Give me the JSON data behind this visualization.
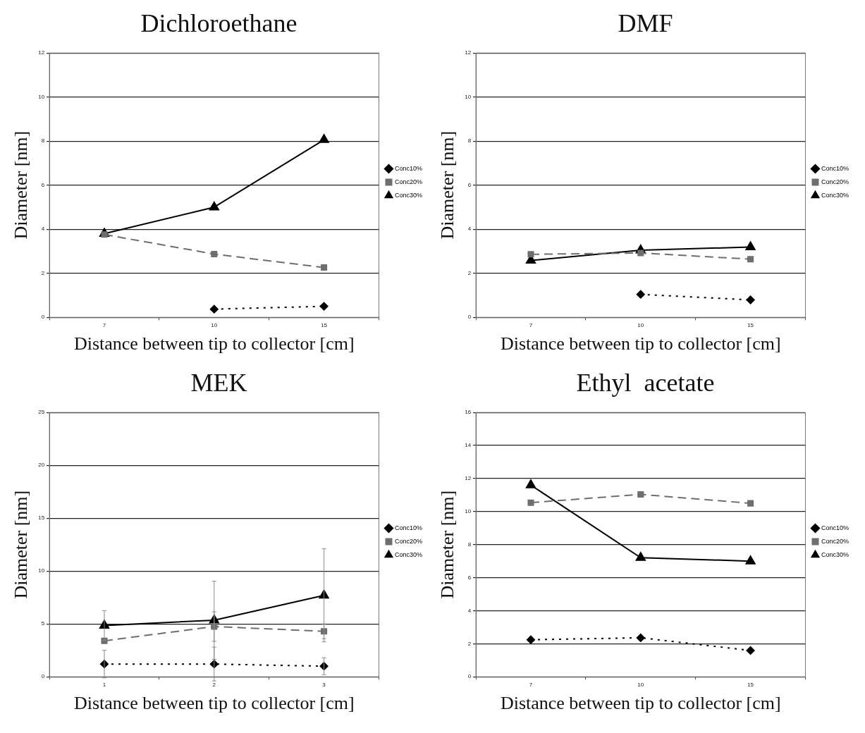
{
  "chart_data": [
    {
      "type": "line",
      "title": "Dichloroethane",
      "xlabel": "Distance between tip to collector [cm]",
      "ylabel": "Diameter [nm]",
      "categories": [
        "7",
        "10",
        "15"
      ],
      "ylim": [
        0,
        12
      ],
      "yticks": [
        0,
        2,
        4,
        6,
        8,
        10,
        12
      ],
      "grid": "y",
      "legend": "right",
      "series": [
        {
          "name": "Conc10%",
          "color": "#000000",
          "marker": "diamond",
          "line_style": "dotted",
          "values": [
            null,
            0.37,
            0.5
          ]
        },
        {
          "name": "Conc20%",
          "color": "#6e6e6e",
          "marker": "square",
          "line_style": "dashed",
          "values": [
            3.76,
            2.87,
            2.26
          ]
        },
        {
          "name": "Conc30%",
          "color": "#000000",
          "marker": "triangle",
          "line_style": "solid",
          "values": [
            3.8,
            5.0,
            8.06
          ]
        }
      ]
    },
    {
      "type": "line",
      "title": "DMF",
      "xlabel": "Distance between tip to collector [cm]",
      "ylabel": "Diameter [nm]",
      "categories": [
        "7",
        "10",
        "15"
      ],
      "ylim": [
        0,
        12
      ],
      "yticks": [
        0,
        2,
        4,
        6,
        8,
        10,
        12
      ],
      "grid": "y",
      "legend": "right",
      "series": [
        {
          "name": "Conc10%",
          "color": "#000000",
          "marker": "diamond",
          "line_style": "dotted",
          "values": [
            null,
            1.04,
            0.79
          ]
        },
        {
          "name": "Conc20%",
          "color": "#6e6e6e",
          "marker": "square",
          "line_style": "dashed",
          "values": [
            2.86,
            2.92,
            2.64
          ]
        },
        {
          "name": "Conc30%",
          "color": "#000000",
          "marker": "triangle",
          "line_style": "solid",
          "values": [
            2.58,
            3.05,
            3.19
          ]
        }
      ]
    },
    {
      "type": "line",
      "title": "MEK",
      "xlabel": "Distance between tip to collector [cm]",
      "ylabel": "Diameter [nm]",
      "categories": [
        "1",
        "2",
        "3"
      ],
      "ylim": [
        0,
        25
      ],
      "yticks": [
        0,
        5,
        10,
        15,
        20,
        25
      ],
      "grid": "y",
      "legend": "right",
      "series": [
        {
          "name": "Conc10%",
          "color": "#000000",
          "marker": "diamond",
          "line_style": "dotted",
          "values": [
            1.2,
            1.2,
            1.0
          ],
          "errors": [
            1.3,
            1.6,
            0.8
          ]
        },
        {
          "name": "Conc20%",
          "color": "#6e6e6e",
          "marker": "square",
          "line_style": "dashed",
          "values": [
            3.4,
            4.75,
            4.3
          ],
          "errors": [
            null,
            1.4,
            0.7
          ]
        },
        {
          "name": "Conc30%",
          "color": "#000000",
          "marker": "triangle",
          "line_style": "solid",
          "values": [
            4.85,
            5.35,
            7.7
          ],
          "errors": [
            1.4,
            3.7,
            4.4
          ]
        }
      ]
    },
    {
      "type": "line",
      "title": "Ethyl  acetate",
      "xlabel": "Distance between tip to collector [cm]",
      "ylabel": "Diameter [nm]",
      "categories": [
        "7",
        "10",
        "15"
      ],
      "ylim": [
        0,
        16
      ],
      "yticks": [
        0,
        2,
        4,
        6,
        8,
        10,
        12,
        14,
        16
      ],
      "grid": "y",
      "legend": "right",
      "series": [
        {
          "name": "Conc10%",
          "color": "#000000",
          "marker": "diamond",
          "line_style": "dotted",
          "values": [
            2.24,
            2.36,
            1.59
          ]
        },
        {
          "name": "Conc20%",
          "color": "#6e6e6e",
          "marker": "square",
          "line_style": "dashed",
          "values": [
            10.54,
            11.04,
            10.5
          ]
        },
        {
          "name": "Conc30%",
          "color": "#000000",
          "marker": "triangle",
          "line_style": "solid",
          "values": [
            11.6,
            7.21,
            7.0
          ]
        }
      ]
    }
  ]
}
